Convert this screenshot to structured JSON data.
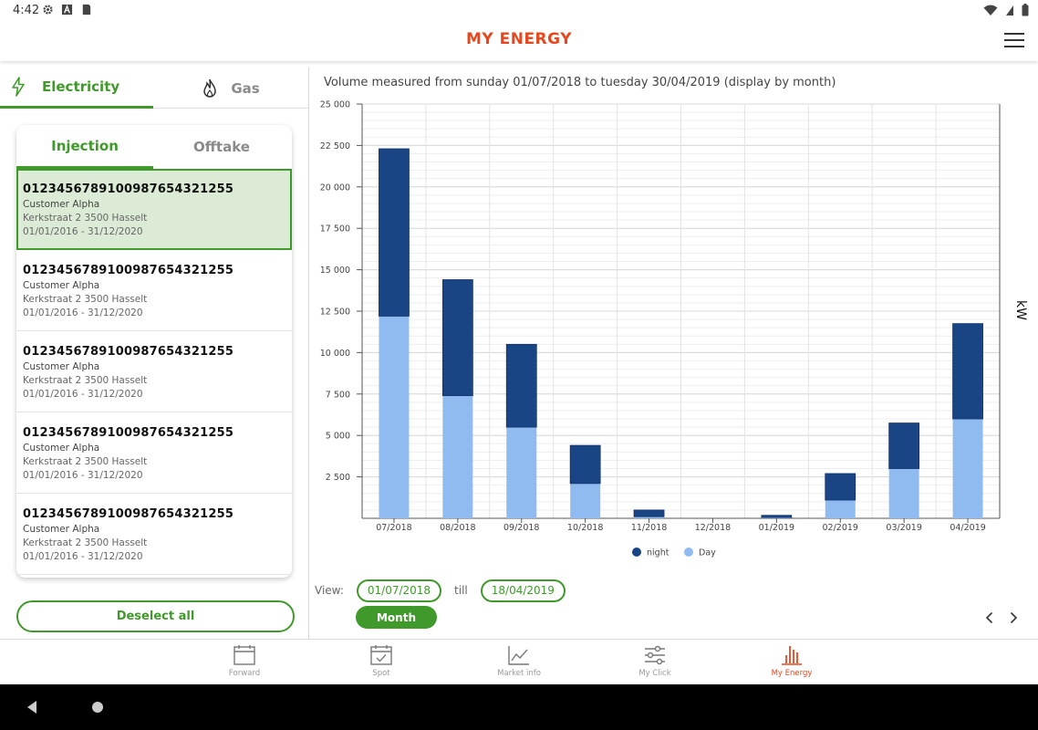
{
  "status": {
    "time": "4:42"
  },
  "app": {
    "title": "MY ENERGY"
  },
  "energy_tabs": {
    "electricity": "Electricity",
    "gas": "Gas"
  },
  "sub_tabs": {
    "injection": "Injection",
    "offtake": "Offtake"
  },
  "ean_list": [
    {
      "code": "0123456789100987654321255",
      "customer": "Customer Alpha",
      "address": "Kerkstraat 2 3500 Hasselt",
      "period": "01/01/2016 - 31/12/2020",
      "selected": true
    },
    {
      "code": "0123456789100987654321255",
      "customer": "Customer Alpha",
      "address": "Kerkstraat 2 3500 Hasselt",
      "period": "01/01/2016 - 31/12/2020",
      "selected": false
    },
    {
      "code": "0123456789100987654321255",
      "customer": "Customer Alpha",
      "address": "Kerkstraat 2 3500 Hasselt",
      "period": "01/01/2016 - 31/12/2020",
      "selected": false
    },
    {
      "code": "0123456789100987654321255",
      "customer": "Customer Alpha",
      "address": "Kerkstraat 2 3500 Hasselt",
      "period": "01/01/2016 - 31/12/2020",
      "selected": false
    },
    {
      "code": "0123456789100987654321255",
      "customer": "Customer Alpha",
      "address": "Kerkstraat 2 3500 Hasselt",
      "period": "01/01/2016 - 31/12/2020",
      "selected": false
    }
  ],
  "deselect_label": "Deselect all",
  "chart_title": "Volume measured from sunday 01/07/2018 to tuesday 30/04/2019 (display by month)",
  "chart_data": {
    "type": "bar",
    "stacked": true,
    "categories": [
      "07/2018",
      "08/2018",
      "09/2018",
      "10/2018",
      "11/2018",
      "12/2018",
      "01/2019",
      "02/2019",
      "03/2019",
      "04/2019"
    ],
    "series": [
      {
        "name": "Day",
        "color": "#8fbbf0",
        "values": [
          12200,
          7400,
          5500,
          2100,
          100,
          0,
          50,
          1100,
          3000,
          6000
        ]
      },
      {
        "name": "night",
        "color": "#1a4585",
        "values": [
          10100,
          7000,
          5000,
          2300,
          400,
          0,
          130,
          1600,
          2750,
          5750
        ]
      }
    ],
    "legend_order": [
      "night",
      "Day"
    ],
    "ylabel": "kW",
    "ylim": [
      0,
      25000
    ],
    "yticks": [
      "25 000",
      "22 500",
      "20 000",
      "17 500",
      "15 000",
      "12 500",
      "10 000",
      "7 500",
      "5 000",
      "2 500"
    ],
    "ytick_values": [
      25000,
      22500,
      20000,
      17500,
      15000,
      12500,
      10000,
      7500,
      5000,
      2500
    ],
    "grid": true,
    "legend_position": "bottom"
  },
  "view": {
    "label": "View:",
    "from": "01/07/2018",
    "till_label": "till",
    "to": "18/04/2019",
    "period_button": "Month"
  },
  "bottom_nav": [
    {
      "label": "Forward",
      "icon": "calendar-icon",
      "active": false
    },
    {
      "label": "Spot",
      "icon": "calendar-check-icon",
      "active": false
    },
    {
      "label": "Market info",
      "icon": "line-chart-icon",
      "active": false
    },
    {
      "label": "My Click",
      "icon": "sliders-icon",
      "active": false
    },
    {
      "label": "My Energy",
      "icon": "bar-chart-icon",
      "active": true
    }
  ],
  "colors": {
    "accent_green": "#3f9a2b",
    "brand_orange": "#e8471d",
    "night": "#1a4585",
    "day": "#8fbbf0"
  }
}
